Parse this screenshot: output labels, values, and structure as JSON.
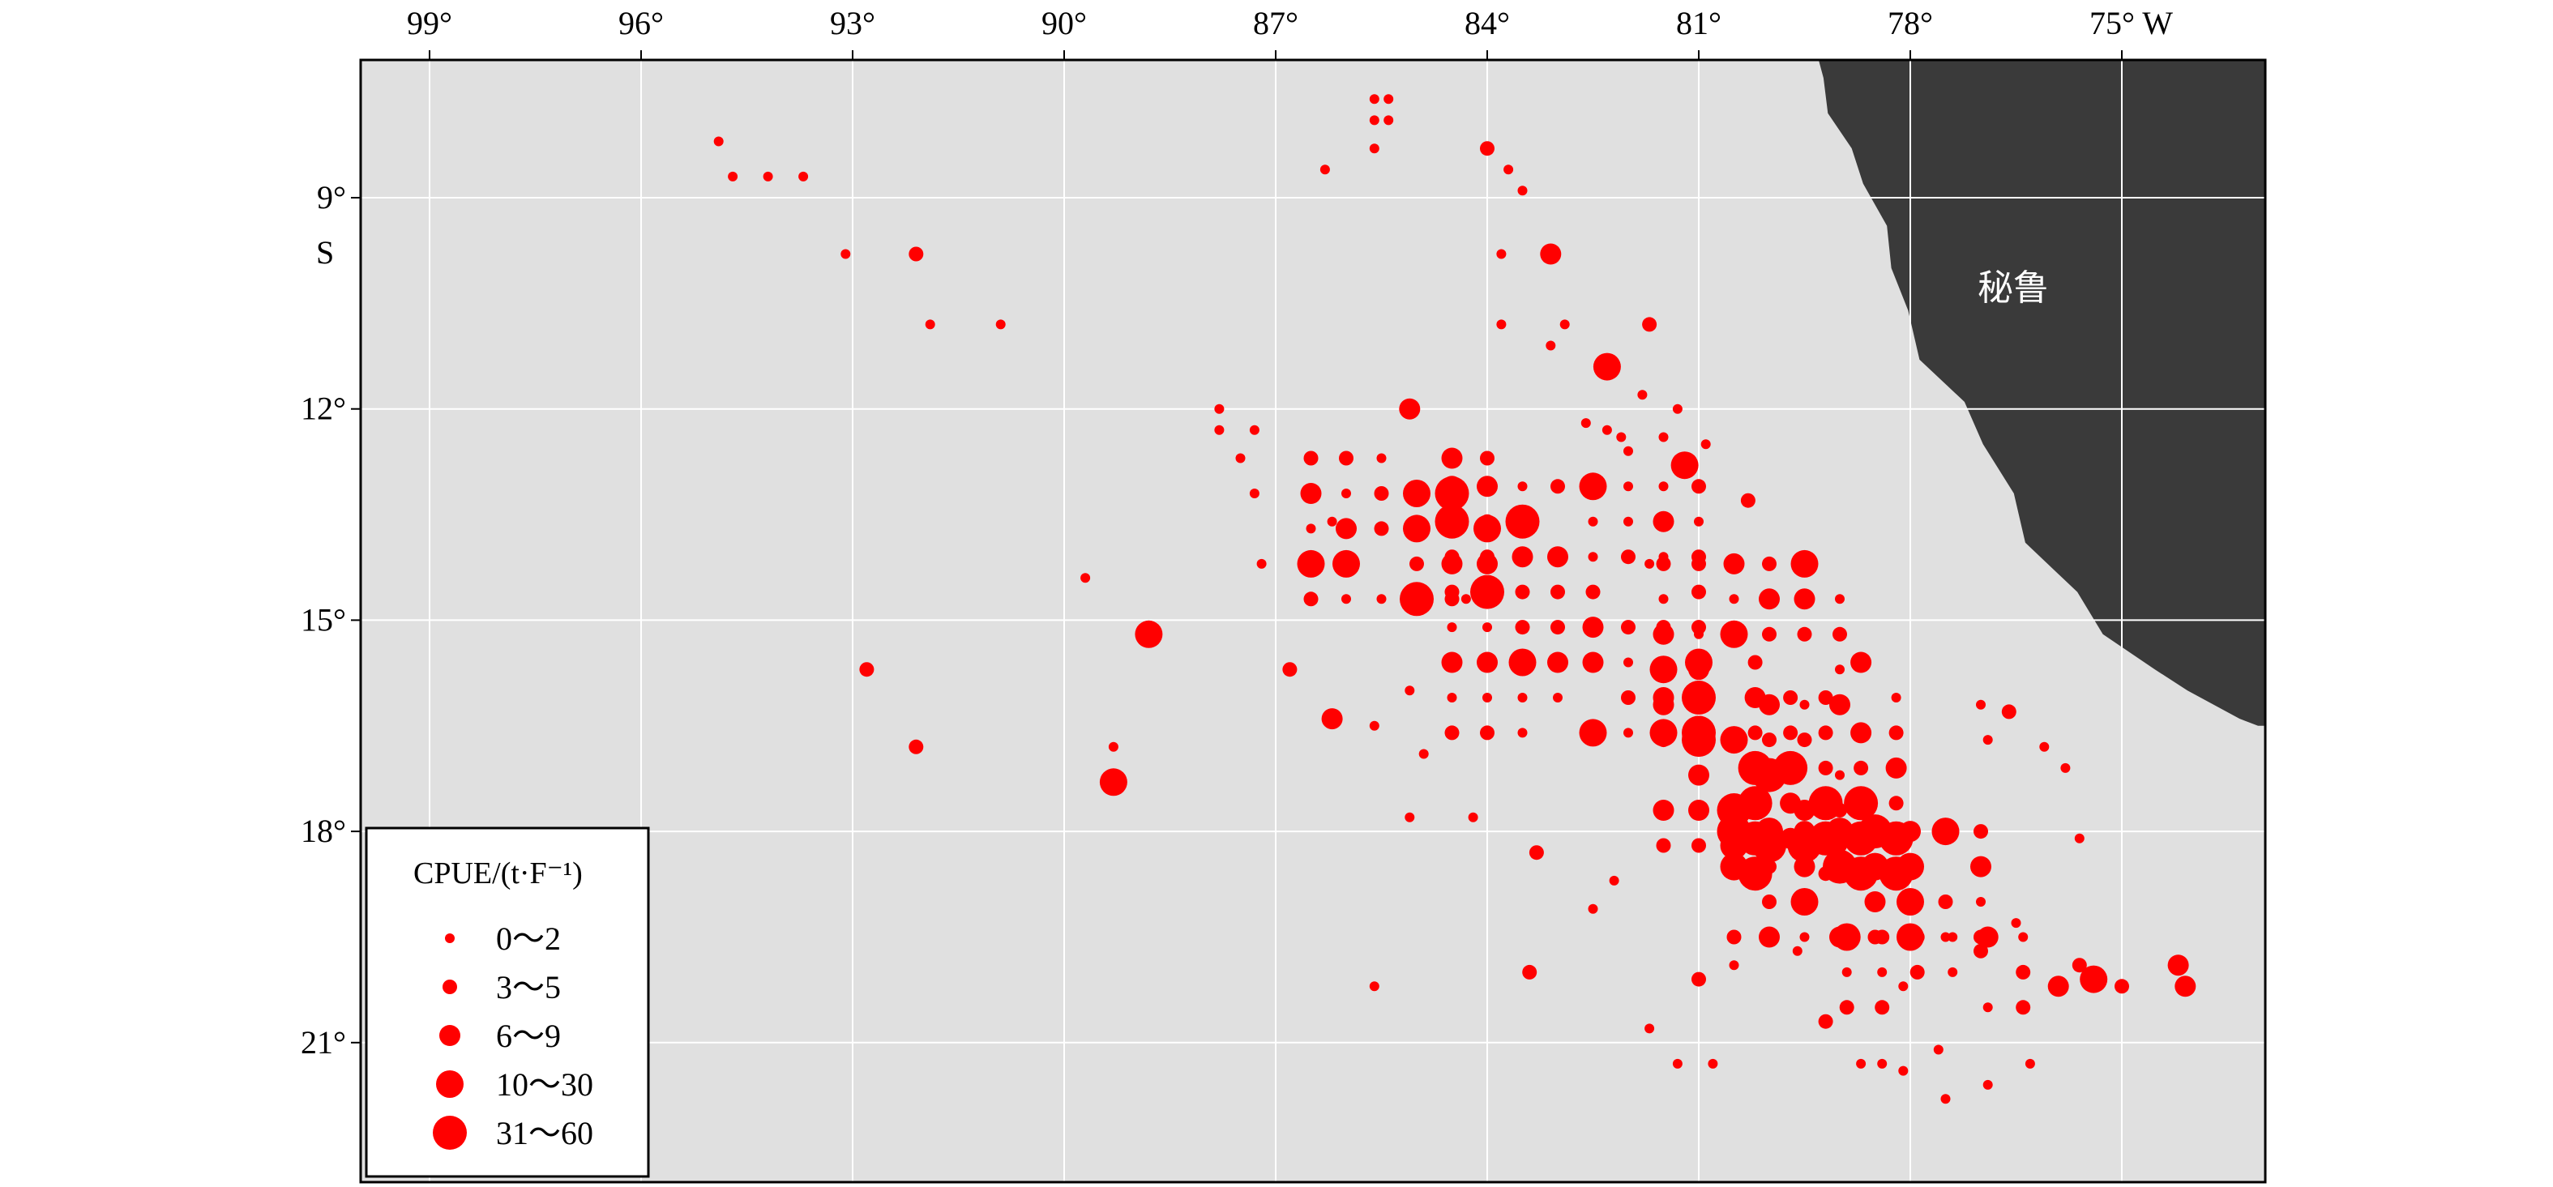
{
  "map": {
    "land_label": "秘鲁",
    "colors": {
      "ocean": "#e0e0e0",
      "land": "#3a3a3a",
      "grid": "#ffffff",
      "catch": "#ff0000"
    },
    "x_ticks": [
      {
        "lon": 99,
        "label": "99°"
      },
      {
        "lon": 96,
        "label": "96°"
      },
      {
        "lon": 93,
        "label": "93°"
      },
      {
        "lon": 90,
        "label": "90°"
      },
      {
        "lon": 87,
        "label": "87°"
      },
      {
        "lon": 84,
        "label": "84°"
      },
      {
        "lon": 81,
        "label": "81°"
      },
      {
        "lon": 78,
        "label": "78°"
      },
      {
        "lon": 75,
        "label": "75° W"
      }
    ],
    "y_ticks": [
      {
        "lat": 9,
        "label": "9°"
      },
      {
        "lat": 12,
        "label": "12°"
      },
      {
        "lat": 15,
        "label": "15°"
      },
      {
        "lat": 18,
        "label": "18°"
      },
      {
        "lat": 21,
        "label": "21°"
      }
    ],
    "y_hemisphere": "S"
  },
  "legend": {
    "title": "CPUE/(t·F⁻¹)",
    "items": [
      {
        "label": "0～2",
        "cls": 1
      },
      {
        "label": "3～5",
        "cls": 2
      },
      {
        "label": "6～9",
        "cls": 3
      },
      {
        "label": "10～30",
        "cls": 4
      },
      {
        "label": "31～60",
        "cls": 5
      }
    ]
  },
  "chart_data": {
    "type": "scatter",
    "x_axis": "longitude (°W)",
    "y_axis": "latitude (°S)",
    "xlim": [
      100,
      73
    ],
    "ylim": [
      7.3,
      22.8
    ],
    "fishing_spots": [
      [
        94.9,
        8.2,
        1
      ],
      [
        94.7,
        8.7,
        1
      ],
      [
        94.2,
        8.7,
        1
      ],
      [
        93.7,
        8.7,
        1
      ],
      [
        93.1,
        9.8,
        1
      ],
      [
        92.1,
        9.8,
        2
      ],
      [
        91.9,
        10.8,
        1
      ],
      [
        90.9,
        10.8,
        1
      ],
      [
        92.8,
        15.7,
        2
      ],
      [
        92.1,
        16.8,
        2
      ],
      [
        89.7,
        14.4,
        1
      ],
      [
        88.8,
        15.2,
        4
      ],
      [
        89.3,
        16.8,
        1
      ],
      [
        89.3,
        17.3,
        4
      ],
      [
        86.3,
        8.6,
        1
      ],
      [
        85.6,
        7.6,
        1
      ],
      [
        85.4,
        7.6,
        1
      ],
      [
        85.6,
        7.9,
        1
      ],
      [
        85.4,
        7.9,
        1
      ],
      [
        85.6,
        8.3,
        1
      ],
      [
        84.0,
        8.3,
        2
      ],
      [
        83.7,
        8.6,
        1
      ],
      [
        83.5,
        8.9,
        1
      ],
      [
        83.8,
        9.8,
        1
      ],
      [
        83.1,
        9.8,
        3
      ],
      [
        83.8,
        10.8,
        1
      ],
      [
        82.9,
        10.8,
        1
      ],
      [
        83.1,
        11.1,
        1
      ],
      [
        82.3,
        11.4,
        4
      ],
      [
        81.7,
        10.8,
        2
      ],
      [
        85.1,
        12.0,
        3
      ],
      [
        82.6,
        12.2,
        1
      ],
      [
        81.8,
        11.8,
        1
      ],
      [
        81.3,
        12.0,
        1
      ],
      [
        81.5,
        12.4,
        1
      ],
      [
        82.1,
        12.4,
        1
      ],
      [
        80.9,
        12.5,
        1
      ],
      [
        81.2,
        12.8,
        4
      ],
      [
        82.0,
        12.6,
        1
      ],
      [
        82.3,
        12.3,
        1
      ],
      [
        87.8,
        12.0,
        1
      ],
      [
        87.8,
        12.3,
        1
      ],
      [
        87.3,
        12.3,
        1
      ],
      [
        87.5,
        12.7,
        1
      ],
      [
        87.3,
        13.2,
        1
      ],
      [
        87.2,
        14.2,
        1
      ],
      [
        86.8,
        15.7,
        2
      ],
      [
        86.2,
        16.4,
        3
      ],
      [
        85.1,
        16.0,
        1
      ],
      [
        84.9,
        16.9,
        1
      ],
      [
        85.6,
        16.5,
        1
      ],
      [
        85.1,
        17.8,
        1
      ],
      [
        84.2,
        17.8,
        1
      ],
      [
        85.6,
        20.2,
        1
      ],
      [
        80.3,
        13.3,
        2
      ],
      [
        83.3,
        18.3,
        2
      ],
      [
        82.2,
        18.7,
        1
      ],
      [
        82.5,
        19.1,
        1
      ],
      [
        81.7,
        20.8,
        1
      ],
      [
        81.3,
        21.3,
        1
      ],
      [
        80.8,
        21.3,
        1
      ],
      [
        79.6,
        19.7,
        1
      ],
      [
        83.4,
        20.0,
        2
      ],
      [
        81.0,
        20.1,
        2
      ],
      [
        80.5,
        19.9,
        1
      ],
      [
        79.2,
        20.7,
        2
      ],
      [
        78.7,
        21.3,
        1
      ],
      [
        78.4,
        21.3,
        1
      ],
      [
        77.6,
        21.1,
        1
      ],
      [
        78.1,
        21.4,
        1
      ],
      [
        77.5,
        21.8,
        1
      ],
      [
        76.9,
        21.6,
        1
      ],
      [
        76.3,
        21.3,
        1
      ],
      [
        75.9,
        20.2,
        3
      ],
      [
        75.4,
        20.1,
        4
      ],
      [
        75.0,
        20.2,
        2
      ],
      [
        74.2,
        19.9,
        3
      ],
      [
        74.1,
        20.2,
        3
      ],
      [
        77.0,
        16.2,
        1
      ],
      [
        76.6,
        16.3,
        2
      ],
      [
        76.9,
        16.7,
        1
      ],
      [
        76.1,
        16.8,
        1
      ],
      [
        75.8,
        17.1,
        1
      ],
      [
        75.6,
        18.1,
        1
      ],
      [
        77.0,
        19.7,
        2
      ],
      [
        76.5,
        19.3,
        1
      ],
      [
        75.6,
        19.9,
        2
      ],
      [
        78.1,
        20.2,
        1
      ],
      [
        82.5,
        14.6,
        2
      ],
      [
        81.7,
        14.2,
        1
      ],
      [
        84.3,
        14.7,
        1
      ],
      [
        86.2,
        13.6,
        1
      ]
    ],
    "dense_zones": [
      {
        "lon": [
          86.9,
          84.0
        ],
        "lat": [
          12.7,
          15.1
        ],
        "step": 0.5
      },
      {
        "lon": [
          84.5,
          81.0
        ],
        "lat": [
          13.1,
          16.8
        ],
        "step": 0.5
      },
      {
        "lon": [
          81.6,
          79.0
        ],
        "lat": [
          14.2,
          18.3
        ],
        "step": 0.5
      },
      {
        "lon": [
          80.2,
          78.2
        ],
        "lat": [
          15.6,
          18.8
        ],
        "step": 0.5
      },
      {
        "lon": [
          80.8,
          77.0
        ],
        "lat": [
          18.0,
          19.6
        ],
        "step": 0.5
      },
      {
        "lon": [
          79.1,
          76.4
        ],
        "lat": [
          19.5,
          20.6
        ],
        "step": 0.5
      }
    ]
  }
}
